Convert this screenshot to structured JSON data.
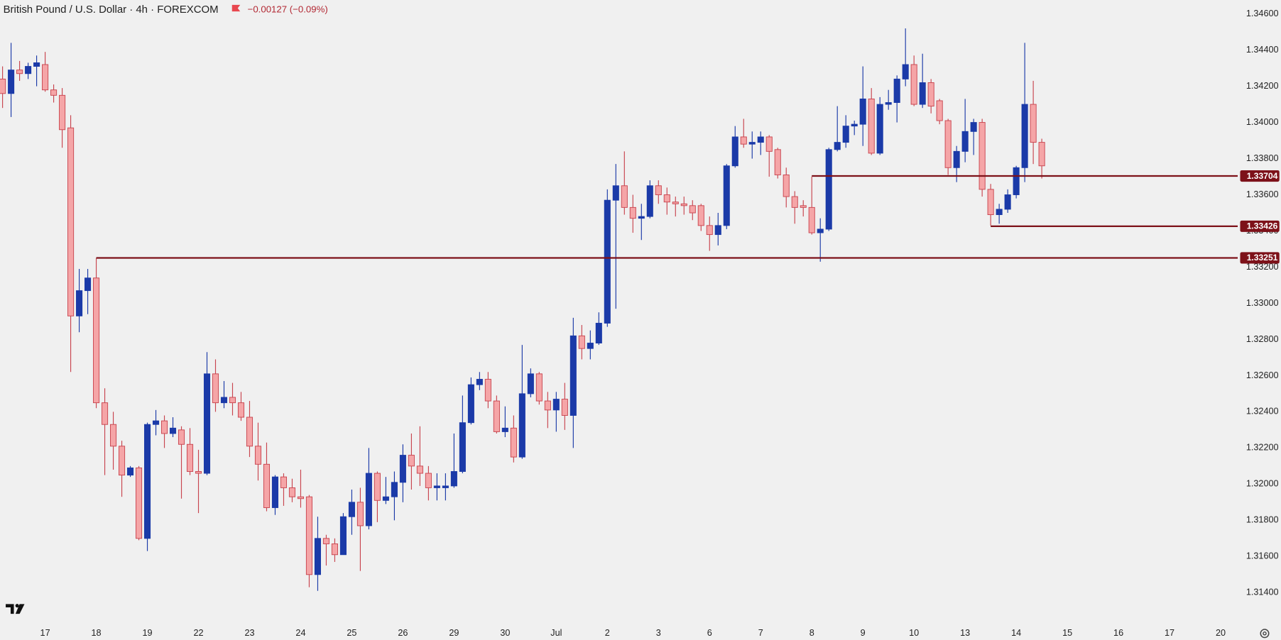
{
  "chart_data": {
    "type": "candlestick",
    "title": "British Pound / U.S. Dollar · 4h · FOREXCOM",
    "change": "−0.00127 (−0.09%)",
    "open": [
      1.3424,
      1.3416,
      1.3429,
      1.3427,
      1.3431,
      1.3432,
      1.3418,
      1.3415,
      1.3397,
      1.3293,
      1.3307,
      1.3314,
      1.3245,
      1.3233,
      1.3221,
      1.3205,
      1.3209,
      1.317,
      1.3233,
      1.3235,
      1.3228,
      1.323,
      1.3222,
      1.3207,
      1.3206,
      1.3261,
      1.3245,
      1.3248,
      1.3245,
      1.3237,
      1.3221,
      1.3211,
      1.3187,
      1.3204,
      1.3198,
      1.3193,
      1.3193,
      1.315,
      1.317,
      1.3167,
      1.3161,
      1.3182,
      1.319,
      1.3177,
      1.3206,
      1.3191,
      1.3193,
      1.3201,
      1.3216,
      1.321,
      1.3206,
      1.3198,
      1.3198,
      1.3199,
      1.3207,
      1.3234,
      1.3255,
      1.3258,
      1.3246,
      1.3229,
      1.3231,
      1.3215,
      1.325,
      1.3261,
      1.3246,
      1.3241,
      1.3247,
      1.3238,
      1.3282,
      1.3275,
      1.3278,
      1.3289,
      1.3357,
      1.3365,
      1.3353,
      1.3347,
      1.3348,
      1.3365,
      1.336,
      1.3356,
      1.3355,
      1.3354,
      1.3354,
      1.3343,
      1.3338,
      1.3343,
      1.3376,
      1.3392,
      1.3388,
      1.3389,
      1.3392,
      1.3385,
      1.3371,
      1.3359,
      1.3354,
      1.3353,
      1.3339,
      1.3341,
      1.3385,
      1.3389,
      1.3398,
      1.3399,
      1.3413,
      1.3383,
      1.341,
      1.3411,
      1.3424,
      1.3432,
      1.341,
      1.3422,
      1.3412,
      1.3401,
      1.3375,
      1.3384,
      1.3395,
      1.34,
      1.3363,
      1.3349,
      1.3352,
      1.336,
      1.3375,
      1.341,
      1.3389
    ],
    "high": [
      1.3431,
      1.3444,
      1.3434,
      1.3433,
      1.3437,
      1.3439,
      1.3421,
      1.3419,
      1.3404,
      1.3319,
      1.3319,
      1.3325,
      1.3253,
      1.324,
      1.3224,
      1.321,
      1.321,
      1.3234,
      1.3241,
      1.3238,
      1.3237,
      1.3232,
      1.3231,
      1.3219,
      1.3273,
      1.3269,
      1.3257,
      1.3256,
      1.3251,
      1.3246,
      1.3234,
      1.3223,
      1.3205,
      1.3206,
      1.3203,
      1.3208,
      1.3194,
      1.3182,
      1.3172,
      1.317,
      1.3184,
      1.3197,
      1.3198,
      1.322,
      1.3207,
      1.3204,
      1.3207,
      1.3222,
      1.3228,
      1.3232,
      1.321,
      1.3206,
      1.3206,
      1.3228,
      1.3249,
      1.3259,
      1.3262,
      1.3262,
      1.3249,
      1.3243,
      1.3238,
      1.3277,
      1.3264,
      1.3262,
      1.3251,
      1.3251,
      1.3256,
      1.3292,
      1.3288,
      1.3285,
      1.3295,
      1.3363,
      1.3377,
      1.3384,
      1.336,
      1.3355,
      1.3368,
      1.3368,
      1.3364,
      1.3359,
      1.3359,
      1.3357,
      1.3355,
      1.3348,
      1.335,
      1.3377,
      1.3398,
      1.3402,
      1.3395,
      1.3395,
      1.3393,
      1.3386,
      1.3375,
      1.3362,
      1.3357,
      1.337,
      1.3347,
      1.3386,
      1.3409,
      1.3404,
      1.3401,
      1.3431,
      1.3419,
      1.3414,
      1.3418,
      1.3426,
      1.3452,
      1.3437,
      1.3438,
      1.3424,
      1.3413,
      1.3402,
      1.3387,
      1.3413,
      1.3402,
      1.3402,
      1.3366,
      1.3355,
      1.3363,
      1.3376,
      1.3444,
      1.3423,
      1.3391
    ],
    "low": [
      1.3408,
      1.3403,
      1.3423,
      1.3424,
      1.342,
      1.3417,
      1.3411,
      1.3386,
      1.3262,
      1.3284,
      1.3294,
      1.3242,
      1.3205,
      1.3208,
      1.3193,
      1.3204,
      1.3169,
      1.3163,
      1.3227,
      1.322,
      1.3226,
      1.3192,
      1.3205,
      1.3184,
      1.3205,
      1.324,
      1.3242,
      1.3238,
      1.3235,
      1.3215,
      1.3202,
      1.3185,
      1.3183,
      1.3188,
      1.319,
      1.3187,
      1.3143,
      1.3141,
      1.3155,
      1.3157,
      1.3161,
      1.3172,
      1.3152,
      1.3175,
      1.3179,
      1.3189,
      1.318,
      1.319,
      1.3197,
      1.3199,
      1.3191,
      1.3191,
      1.3191,
      1.3198,
      1.3206,
      1.3233,
      1.3252,
      1.3242,
      1.3228,
      1.3226,
      1.3212,
      1.3214,
      1.3248,
      1.3244,
      1.3231,
      1.3229,
      1.323,
      1.322,
      1.3269,
      1.3269,
      1.3277,
      1.3287,
      1.3297,
      1.3349,
      1.3339,
      1.3335,
      1.3347,
      1.3355,
      1.3349,
      1.3348,
      1.3349,
      1.3346,
      1.334,
      1.3329,
      1.3332,
      1.3341,
      1.3375,
      1.3386,
      1.338,
      1.3382,
      1.337,
      1.3369,
      1.3353,
      1.3344,
      1.3348,
      1.3338,
      1.3323,
      1.334,
      1.3384,
      1.3386,
      1.3393,
      1.3387,
      1.3382,
      1.3382,
      1.3407,
      1.34,
      1.342,
      1.3409,
      1.3408,
      1.3405,
      1.3399,
      1.3371,
      1.3367,
      1.3378,
      1.3382,
      1.3359,
      1.3343,
      1.3344,
      1.335,
      1.3358,
      1.3367,
      1.3377,
      1.3369
    ],
    "close": [
      1.3416,
      1.3429,
      1.3427,
      1.3431,
      1.3433,
      1.3418,
      1.3415,
      1.3396,
      1.3293,
      1.3307,
      1.3314,
      1.3245,
      1.3233,
      1.3221,
      1.3205,
      1.3209,
      1.317,
      1.3233,
      1.3235,
      1.3228,
      1.3231,
      1.3222,
      1.3207,
      1.3206,
      1.3261,
      1.3245,
      1.3248,
      1.3245,
      1.3237,
      1.3221,
      1.3211,
      1.3187,
      1.3204,
      1.3198,
      1.3193,
      1.3192,
      1.315,
      1.317,
      1.3167,
      1.3161,
      1.3182,
      1.319,
      1.3177,
      1.3206,
      1.3191,
      1.3193,
      1.3201,
      1.3216,
      1.321,
      1.3206,
      1.3198,
      1.3199,
      1.3199,
      1.3207,
      1.3234,
      1.3255,
      1.3258,
      1.3246,
      1.3229,
      1.3231,
      1.3215,
      1.325,
      1.3261,
      1.3246,
      1.3241,
      1.3247,
      1.3238,
      1.3282,
      1.3275,
      1.3278,
      1.3289,
      1.3357,
      1.3365,
      1.3353,
      1.3347,
      1.3348,
      1.3365,
      1.336,
      1.3356,
      1.3355,
      1.3354,
      1.335,
      1.3343,
      1.3338,
      1.3343,
      1.3376,
      1.3392,
      1.3388,
      1.3389,
      1.3392,
      1.3384,
      1.3371,
      1.3359,
      1.3353,
      1.3353,
      1.3339,
      1.3341,
      1.3385,
      1.3389,
      1.3398,
      1.3399,
      1.3413,
      1.3383,
      1.341,
      1.3411,
      1.3424,
      1.3432,
      1.341,
      1.3422,
      1.3409,
      1.3401,
      1.3375,
      1.3384,
      1.3395,
      1.34,
      1.3363,
      1.3349,
      1.3352,
      1.336,
      1.3375,
      1.341,
      1.3389,
      1.3376
    ],
    "xlim": [
      -0.3,
      145
    ],
    "xticks": [
      {
        "value": 5,
        "label": "17"
      },
      {
        "value": 11,
        "label": "18"
      },
      {
        "value": 17,
        "label": "19"
      },
      {
        "value": 23,
        "label": "22"
      },
      {
        "value": 29,
        "label": "23"
      },
      {
        "value": 35,
        "label": "24"
      },
      {
        "value": 41,
        "label": "25"
      },
      {
        "value": 47,
        "label": "26"
      },
      {
        "value": 53,
        "label": "29"
      },
      {
        "value": 59,
        "label": "30"
      },
      {
        "value": 65,
        "label": "Jul"
      },
      {
        "value": 71,
        "label": "2"
      },
      {
        "value": 77,
        "label": "3"
      },
      {
        "value": 83,
        "label": "6"
      },
      {
        "value": 89,
        "label": "7"
      },
      {
        "value": 95,
        "label": "8"
      },
      {
        "value": 101,
        "label": "9"
      },
      {
        "value": 107,
        "label": "10"
      },
      {
        "value": 113,
        "label": "13"
      },
      {
        "value": 119,
        "label": "14"
      },
      {
        "value": 125,
        "label": "15"
      },
      {
        "value": 131,
        "label": "16"
      },
      {
        "value": 137,
        "label": "17"
      },
      {
        "value": 143,
        "label": "20"
      }
    ],
    "ylim": [
      1.31224,
      1.34677
    ],
    "yticks": [
      {
        "value": 1.314,
        "label": "1.31400"
      },
      {
        "value": 1.316,
        "label": "1.31600"
      },
      {
        "value": 1.318,
        "label": "1.31800"
      },
      {
        "value": 1.32,
        "label": "1.32000"
      },
      {
        "value": 1.322,
        "label": "1.32200"
      },
      {
        "value": 1.324,
        "label": "1.32400"
      },
      {
        "value": 1.326,
        "label": "1.32600"
      },
      {
        "value": 1.328,
        "label": "1.32800"
      },
      {
        "value": 1.33,
        "label": "1.33000"
      },
      {
        "value": 1.332,
        "label": "1.33200"
      },
      {
        "value": 1.334,
        "label": "1.33400"
      },
      {
        "value": 1.336,
        "label": "1.33600"
      },
      {
        "value": 1.338,
        "label": "1.33800"
      },
      {
        "value": 1.34,
        "label": "1.34000"
      },
      {
        "value": 1.342,
        "label": "1.34200"
      },
      {
        "value": 1.344,
        "label": "1.34400"
      },
      {
        "value": 1.346,
        "label": "1.34600"
      }
    ],
    "levels": [
      {
        "value": 1.33704,
        "start": 95
      },
      {
        "value": 1.33426,
        "start": 116
      },
      {
        "value": 1.33251,
        "start": 11
      }
    ],
    "up_color": "#1b3aa8",
    "down_color": "#f5a5a7",
    "down_border": "#c8444e",
    "level_color": "#7d1119"
  }
}
